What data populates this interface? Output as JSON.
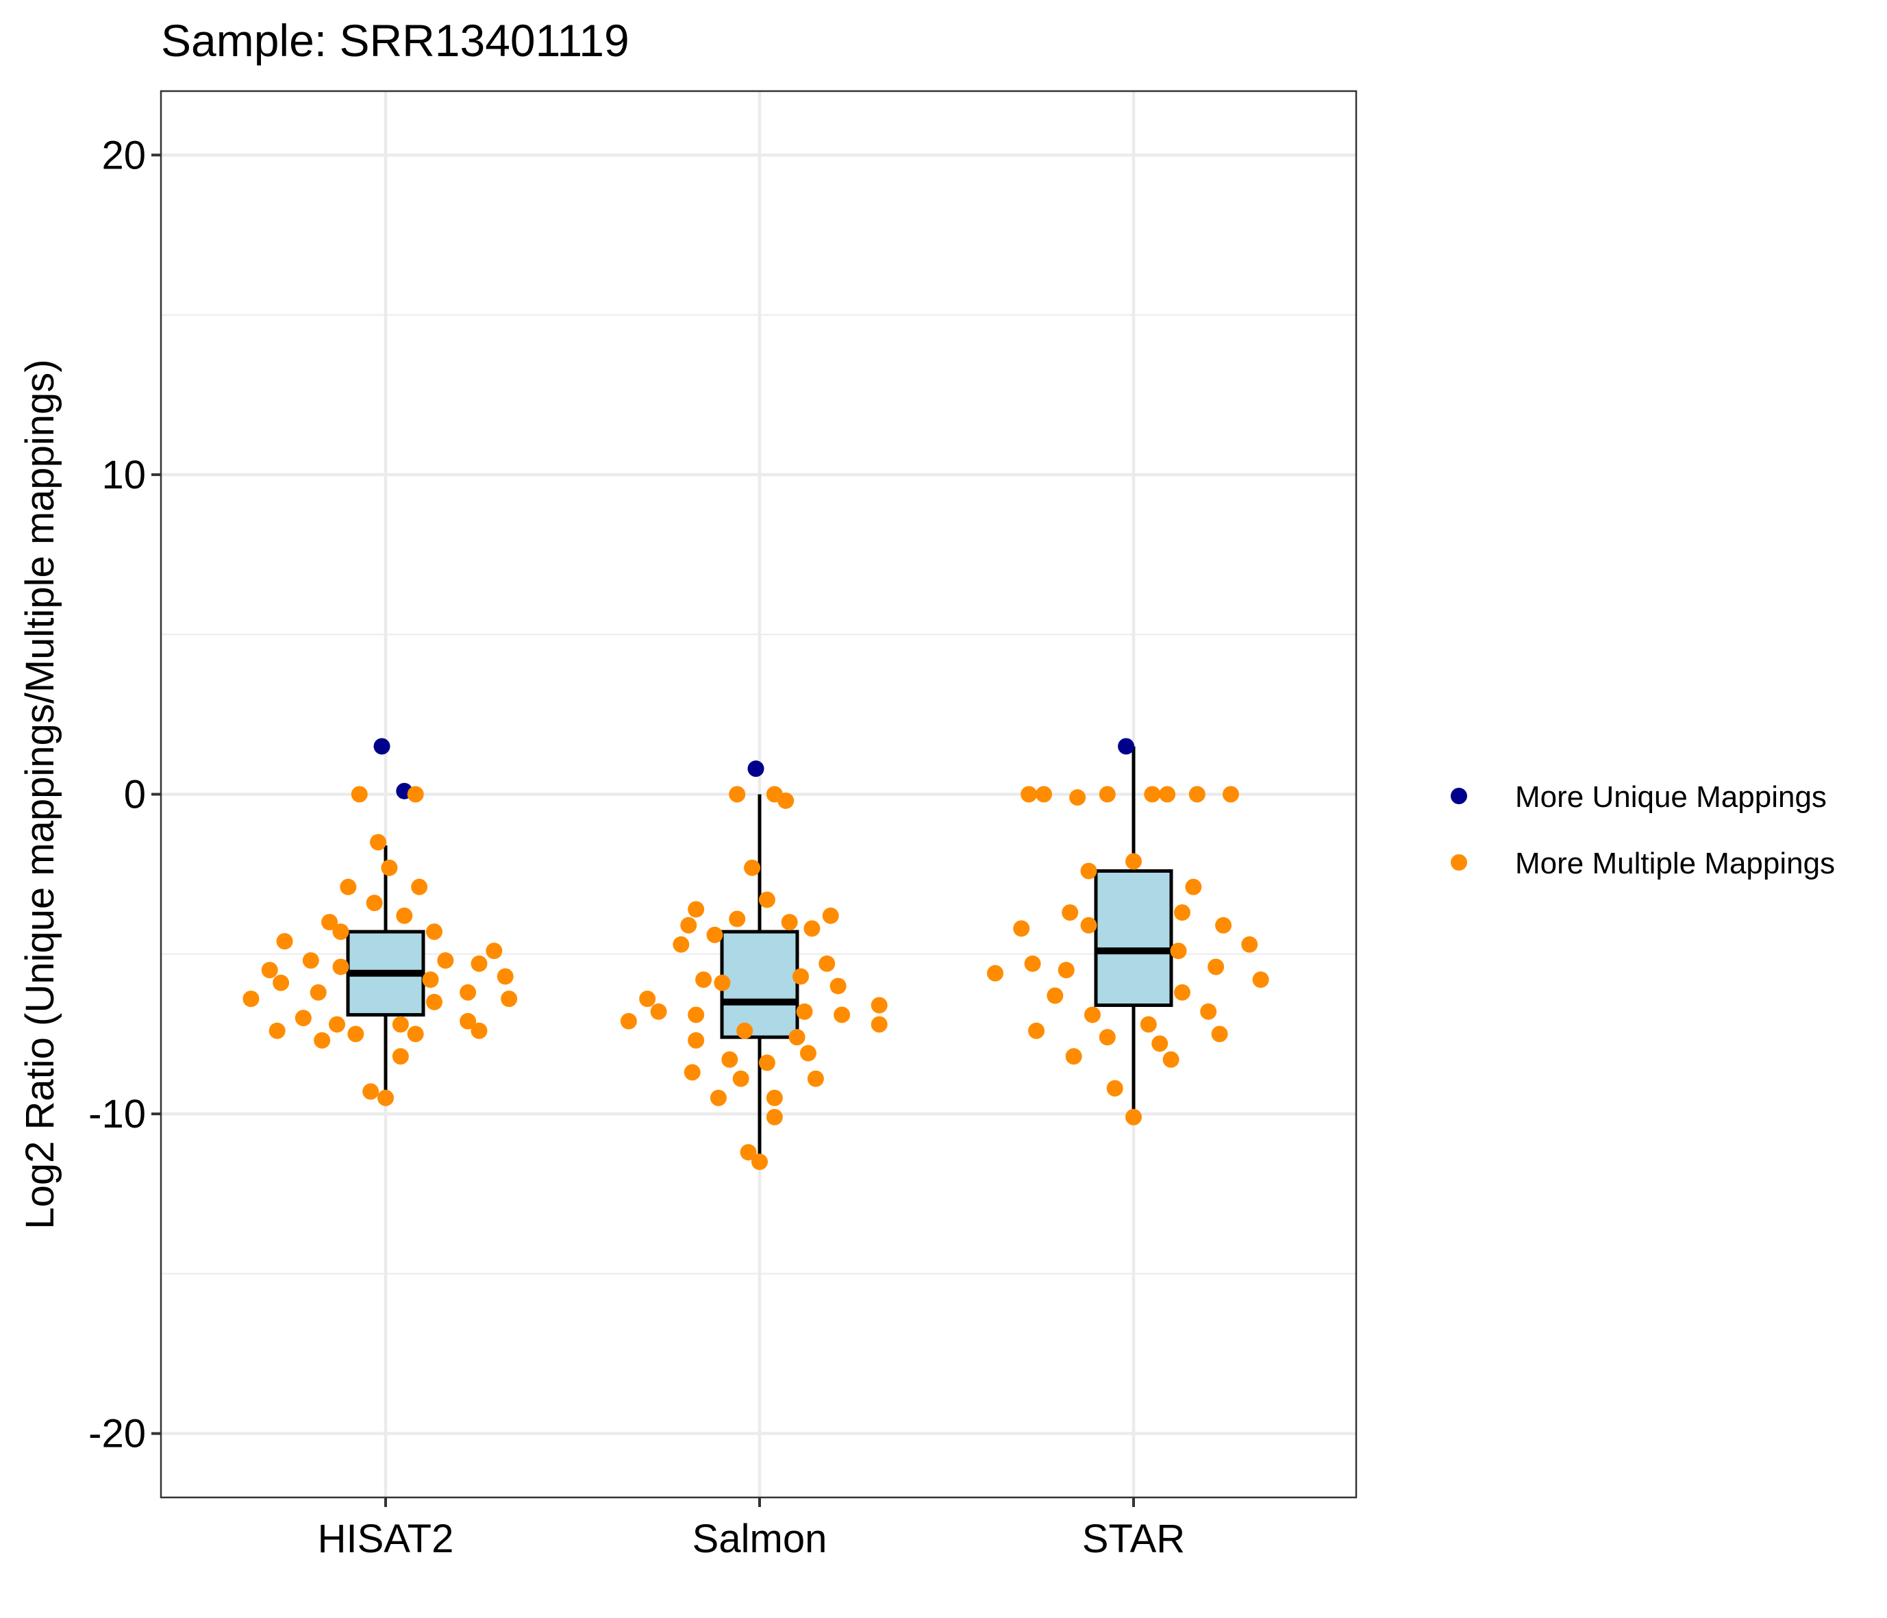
{
  "chart_data": {
    "type": "box",
    "title": "Sample: SRR13401119",
    "xlabel": "",
    "ylabel": "Log2 Ratio (Unique mappings/Multiple mappings)",
    "ylim": [
      -22,
      22
    ],
    "yticks": [
      -20,
      -10,
      0,
      10,
      20
    ],
    "ytick_labels": [
      "-20",
      "-10",
      "0",
      "10",
      "20"
    ],
    "categories": [
      "HISAT2",
      "Salmon",
      "STAR"
    ],
    "grid": true,
    "legend_position": "right",
    "colors": {
      "more_unique": "#00008B",
      "more_multiple": "#FF8C00",
      "box_fill": "#ADD8E6",
      "box_stroke": "#000000",
      "grid": "#EBEBEB",
      "panel_border": "#333333"
    },
    "legend": [
      {
        "label": "More Unique Mappings",
        "color": "#00008B"
      },
      {
        "label": "More Multiple Mappings",
        "color": "#FF8C00"
      }
    ],
    "boxes": [
      {
        "category": "HISAT2",
        "q1": -6.9,
        "median": -5.6,
        "q3": -4.3,
        "whisker_low": -9.5,
        "whisker_high": -1.6
      },
      {
        "category": "Salmon",
        "q1": -7.6,
        "median": -6.5,
        "q3": -4.3,
        "whisker_low": -11.4,
        "whisker_high": 0.0
      },
      {
        "category": "STAR",
        "q1": -6.6,
        "median": -4.9,
        "q3": -2.4,
        "whisker_low": -10.1,
        "whisker_high": 1.5
      }
    ],
    "series": [
      {
        "name": "More Unique Mappings",
        "points": [
          {
            "category": "HISAT2",
            "jitter": -0.01,
            "y": 1.5
          },
          {
            "category": "HISAT2",
            "jitter": 0.05,
            "y": 0.1
          },
          {
            "category": "Salmon",
            "jitter": -0.01,
            "y": 0.8
          },
          {
            "category": "STAR",
            "jitter": -0.02,
            "y": 1.5
          }
        ]
      },
      {
        "name": "More Multiple Mappings",
        "points": [
          {
            "category": "HISAT2",
            "jitter": -0.07,
            "y": 0.0
          },
          {
            "category": "HISAT2",
            "jitter": 0.08,
            "y": 0.0
          },
          {
            "category": "HISAT2",
            "jitter": -0.02,
            "y": -1.5
          },
          {
            "category": "HISAT2",
            "jitter": 0.01,
            "y": -2.3
          },
          {
            "category": "HISAT2",
            "jitter": -0.1,
            "y": -2.9
          },
          {
            "category": "HISAT2",
            "jitter": 0.09,
            "y": -2.9
          },
          {
            "category": "HISAT2",
            "jitter": -0.03,
            "y": -3.4
          },
          {
            "category": "HISAT2",
            "jitter": 0.05,
            "y": -3.8
          },
          {
            "category": "HISAT2",
            "jitter": -0.15,
            "y": -4.0
          },
          {
            "category": "HISAT2",
            "jitter": -0.12,
            "y": -4.3
          },
          {
            "category": "HISAT2",
            "jitter": 0.13,
            "y": -4.3
          },
          {
            "category": "HISAT2",
            "jitter": -0.27,
            "y": -4.6
          },
          {
            "category": "HISAT2",
            "jitter": 0.29,
            "y": -4.9
          },
          {
            "category": "HISAT2",
            "jitter": -0.2,
            "y": -5.2
          },
          {
            "category": "HISAT2",
            "jitter": 0.16,
            "y": -5.2
          },
          {
            "category": "HISAT2",
            "jitter": 0.25,
            "y": -5.3
          },
          {
            "category": "HISAT2",
            "jitter": -0.12,
            "y": -5.4
          },
          {
            "category": "HISAT2",
            "jitter": -0.31,
            "y": -5.5
          },
          {
            "category": "HISAT2",
            "jitter": 0.32,
            "y": -5.7
          },
          {
            "category": "HISAT2",
            "jitter": 0.12,
            "y": -5.8
          },
          {
            "category": "HISAT2",
            "jitter": -0.28,
            "y": -5.9
          },
          {
            "category": "HISAT2",
            "jitter": -0.18,
            "y": -6.2
          },
          {
            "category": "HISAT2",
            "jitter": 0.22,
            "y": -6.2
          },
          {
            "category": "HISAT2",
            "jitter": -0.36,
            "y": -6.4
          },
          {
            "category": "HISAT2",
            "jitter": 0.33,
            "y": -6.4
          },
          {
            "category": "HISAT2",
            "jitter": 0.13,
            "y": -6.5
          },
          {
            "category": "HISAT2",
            "jitter": -0.22,
            "y": -7.0
          },
          {
            "category": "HISAT2",
            "jitter": 0.22,
            "y": -7.1
          },
          {
            "category": "HISAT2",
            "jitter": -0.13,
            "y": -7.2
          },
          {
            "category": "HISAT2",
            "jitter": 0.04,
            "y": -7.2
          },
          {
            "category": "HISAT2",
            "jitter": -0.29,
            "y": -7.4
          },
          {
            "category": "HISAT2",
            "jitter": 0.25,
            "y": -7.4
          },
          {
            "category": "HISAT2",
            "jitter": -0.08,
            "y": -7.5
          },
          {
            "category": "HISAT2",
            "jitter": 0.08,
            "y": -7.5
          },
          {
            "category": "HISAT2",
            "jitter": -0.17,
            "y": -7.7
          },
          {
            "category": "HISAT2",
            "jitter": 0.04,
            "y": -8.2
          },
          {
            "category": "HISAT2",
            "jitter": -0.04,
            "y": -9.3
          },
          {
            "category": "HISAT2",
            "jitter": 0.0,
            "y": -9.5
          },
          {
            "category": "Salmon",
            "jitter": -0.06,
            "y": 0.0
          },
          {
            "category": "Salmon",
            "jitter": 0.04,
            "y": 0.0
          },
          {
            "category": "Salmon",
            "jitter": 0.07,
            "y": -0.2
          },
          {
            "category": "Salmon",
            "jitter": -0.02,
            "y": -2.3
          },
          {
            "category": "Salmon",
            "jitter": 0.02,
            "y": -3.3
          },
          {
            "category": "Salmon",
            "jitter": -0.17,
            "y": -3.6
          },
          {
            "category": "Salmon",
            "jitter": 0.19,
            "y": -3.8
          },
          {
            "category": "Salmon",
            "jitter": -0.06,
            "y": -3.9
          },
          {
            "category": "Salmon",
            "jitter": 0.08,
            "y": -4.0
          },
          {
            "category": "Salmon",
            "jitter": -0.19,
            "y": -4.1
          },
          {
            "category": "Salmon",
            "jitter": 0.14,
            "y": -4.2
          },
          {
            "category": "Salmon",
            "jitter": -0.12,
            "y": -4.4
          },
          {
            "category": "Salmon",
            "jitter": -0.21,
            "y": -4.7
          },
          {
            "category": "Salmon",
            "jitter": 0.18,
            "y": -5.3
          },
          {
            "category": "Salmon",
            "jitter": 0.11,
            "y": -5.7
          },
          {
            "category": "Salmon",
            "jitter": -0.15,
            "y": -5.8
          },
          {
            "category": "Salmon",
            "jitter": -0.1,
            "y": -5.9
          },
          {
            "category": "Salmon",
            "jitter": 0.21,
            "y": -6.0
          },
          {
            "category": "Salmon",
            "jitter": -0.3,
            "y": -6.4
          },
          {
            "category": "Salmon",
            "jitter": 0.32,
            "y": -6.6
          },
          {
            "category": "Salmon",
            "jitter": -0.27,
            "y": -6.8
          },
          {
            "category": "Salmon",
            "jitter": 0.12,
            "y": -6.8
          },
          {
            "category": "Salmon",
            "jitter": 0.22,
            "y": -6.9
          },
          {
            "category": "Salmon",
            "jitter": -0.17,
            "y": -6.9
          },
          {
            "category": "Salmon",
            "jitter": -0.35,
            "y": -7.1
          },
          {
            "category": "Salmon",
            "jitter": 0.32,
            "y": -7.2
          },
          {
            "category": "Salmon",
            "jitter": -0.04,
            "y": -7.4
          },
          {
            "category": "Salmon",
            "jitter": 0.1,
            "y": -7.6
          },
          {
            "category": "Salmon",
            "jitter": -0.17,
            "y": -7.7
          },
          {
            "category": "Salmon",
            "jitter": 0.13,
            "y": -8.1
          },
          {
            "category": "Salmon",
            "jitter": -0.08,
            "y": -8.3
          },
          {
            "category": "Salmon",
            "jitter": 0.02,
            "y": -8.4
          },
          {
            "category": "Salmon",
            "jitter": -0.18,
            "y": -8.7
          },
          {
            "category": "Salmon",
            "jitter": 0.15,
            "y": -8.9
          },
          {
            "category": "Salmon",
            "jitter": -0.05,
            "y": -8.9
          },
          {
            "category": "Salmon",
            "jitter": 0.04,
            "y": -9.5
          },
          {
            "category": "Salmon",
            "jitter": -0.11,
            "y": -9.5
          },
          {
            "category": "Salmon",
            "jitter": 0.04,
            "y": -10.1
          },
          {
            "category": "Salmon",
            "jitter": -0.03,
            "y": -11.2
          },
          {
            "category": "Salmon",
            "jitter": 0.0,
            "y": -11.5
          },
          {
            "category": "STAR",
            "jitter": -0.28,
            "y": 0.0
          },
          {
            "category": "STAR",
            "jitter": -0.24,
            "y": 0.0
          },
          {
            "category": "STAR",
            "jitter": -0.15,
            "y": -0.1
          },
          {
            "category": "STAR",
            "jitter": -0.07,
            "y": 0.0
          },
          {
            "category": "STAR",
            "jitter": 0.05,
            "y": 0.0
          },
          {
            "category": "STAR",
            "jitter": 0.09,
            "y": 0.0
          },
          {
            "category": "STAR",
            "jitter": 0.17,
            "y": 0.0
          },
          {
            "category": "STAR",
            "jitter": 0.26,
            "y": 0.0
          },
          {
            "category": "STAR",
            "jitter": 0.0,
            "y": -2.1
          },
          {
            "category": "STAR",
            "jitter": -0.12,
            "y": -2.4
          },
          {
            "category": "STAR",
            "jitter": 0.16,
            "y": -2.9
          },
          {
            "category": "STAR",
            "jitter": -0.17,
            "y": -3.7
          },
          {
            "category": "STAR",
            "jitter": 0.13,
            "y": -3.7
          },
          {
            "category": "STAR",
            "jitter": -0.12,
            "y": -4.1
          },
          {
            "category": "STAR",
            "jitter": 0.24,
            "y": -4.1
          },
          {
            "category": "STAR",
            "jitter": -0.3,
            "y": -4.2
          },
          {
            "category": "STAR",
            "jitter": 0.31,
            "y": -4.7
          },
          {
            "category": "STAR",
            "jitter": 0.12,
            "y": -4.9
          },
          {
            "category": "STAR",
            "jitter": -0.27,
            "y": -5.3
          },
          {
            "category": "STAR",
            "jitter": -0.18,
            "y": -5.5
          },
          {
            "category": "STAR",
            "jitter": 0.22,
            "y": -5.4
          },
          {
            "category": "STAR",
            "jitter": -0.37,
            "y": -5.6
          },
          {
            "category": "STAR",
            "jitter": 0.34,
            "y": -5.8
          },
          {
            "category": "STAR",
            "jitter": 0.13,
            "y": -6.2
          },
          {
            "category": "STAR",
            "jitter": -0.21,
            "y": -6.3
          },
          {
            "category": "STAR",
            "jitter": 0.2,
            "y": -6.8
          },
          {
            "category": "STAR",
            "jitter": -0.11,
            "y": -6.9
          },
          {
            "category": "STAR",
            "jitter": 0.04,
            "y": -7.2
          },
          {
            "category": "STAR",
            "jitter": -0.26,
            "y": -7.4
          },
          {
            "category": "STAR",
            "jitter": 0.23,
            "y": -7.5
          },
          {
            "category": "STAR",
            "jitter": -0.07,
            "y": -7.6
          },
          {
            "category": "STAR",
            "jitter": 0.07,
            "y": -7.8
          },
          {
            "category": "STAR",
            "jitter": -0.16,
            "y": -8.2
          },
          {
            "category": "STAR",
            "jitter": 0.1,
            "y": -8.3
          },
          {
            "category": "STAR",
            "jitter": -0.05,
            "y": -9.2
          },
          {
            "category": "STAR",
            "jitter": 0.0,
            "y": -10.1
          }
        ]
      }
    ]
  }
}
